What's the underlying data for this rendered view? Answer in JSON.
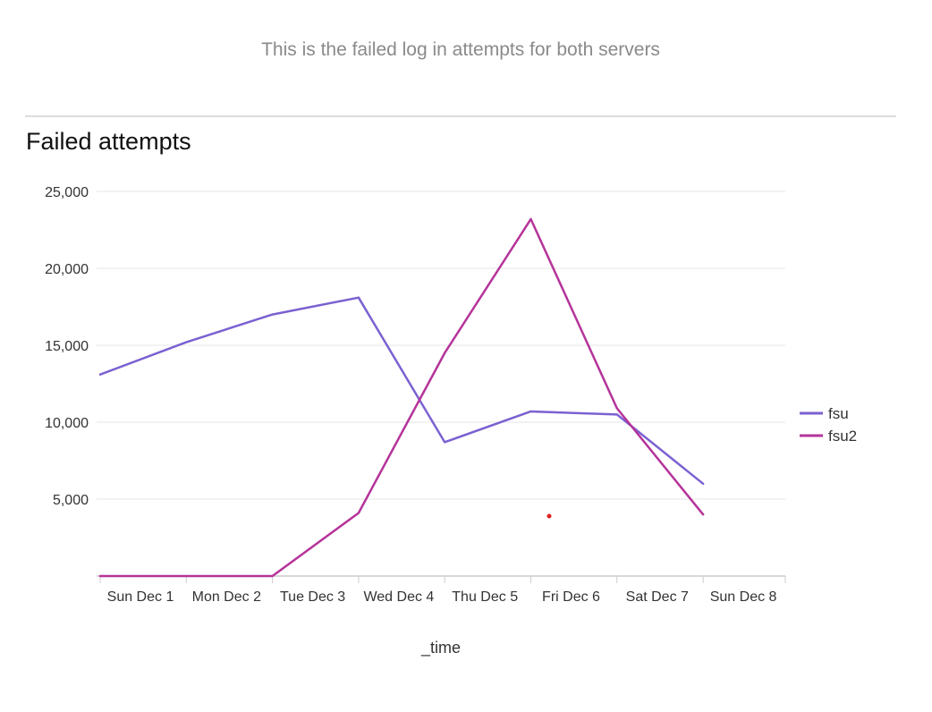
{
  "dashboard": {
    "description": "This is the failed log in attempts for both servers"
  },
  "panel": {
    "title": "Failed attempts"
  },
  "chart_data": {
    "type": "line",
    "title": "Failed attempts",
    "xlabel": "_time",
    "ylabel": "",
    "categories": [
      "Sun Dec 1",
      "Mon Dec 2",
      "Tue Dec 3",
      "Wed Dec 4",
      "Thu Dec 5",
      "Fri Dec 6",
      "Sat Dec 7",
      "Sun Dec 8"
    ],
    "ylim": [
      0,
      25000
    ],
    "yticks": [
      5000,
      10000,
      15000,
      20000,
      25000
    ],
    "ytick_labels": [
      "5,000",
      "10,000",
      "15,000",
      "20,000",
      "25,000"
    ],
    "grid": true,
    "legend_position": "right",
    "series": [
      {
        "name": "fsu",
        "color": "#7b61d1",
        "values": [
          13100,
          15200,
          17000,
          18100,
          8700,
          10700,
          10500,
          6000
        ]
      },
      {
        "name": "fsu2",
        "color": "#b5339a",
        "values": [
          0,
          0,
          0,
          4100,
          14500,
          23200,
          10900,
          4000
        ]
      }
    ]
  }
}
